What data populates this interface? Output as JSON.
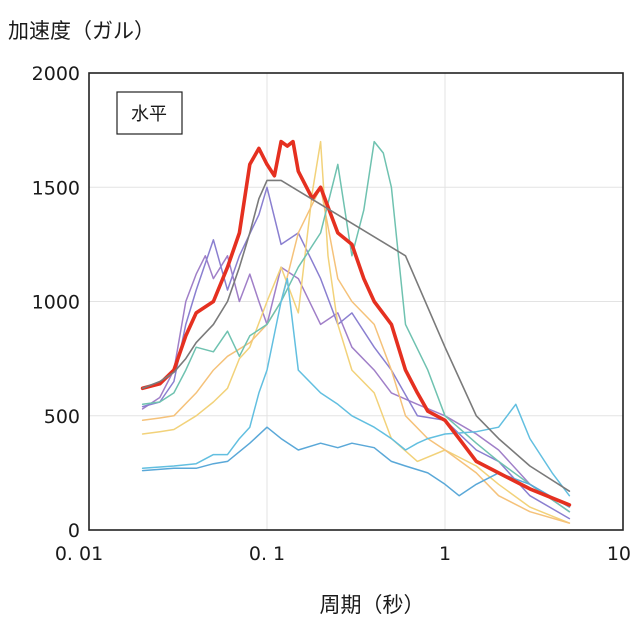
{
  "chart_data": {
    "type": "line",
    "ylabel": "加速度（ガル）",
    "xlabel": "周期（秒）",
    "annotation": "水平",
    "x_scale": "log",
    "xlim": [
      0.01,
      10
    ],
    "ylim": [
      0,
      2000
    ],
    "x_ticks": [
      0.01,
      0.1,
      1,
      10
    ],
    "x_tick_labels": [
      "0. 01",
      "0. 1",
      "1",
      "10"
    ],
    "y_ticks": [
      0,
      500,
      1000,
      1500,
      2000
    ],
    "y_tick_labels": [
      "0",
      "500",
      "1000",
      "1500",
      "2000"
    ],
    "grid": true,
    "series": [
      {
        "color": "#a07fc8",
        "values": [
          [
            0.02,
            530
          ],
          [
            0.025,
            580
          ],
          [
            0.03,
            700
          ],
          [
            0.035,
            1000
          ],
          [
            0.04,
            1120
          ],
          [
            0.045,
            1200
          ],
          [
            0.05,
            1100
          ],
          [
            0.06,
            1200
          ],
          [
            0.07,
            1000
          ],
          [
            0.08,
            1120
          ],
          [
            0.09,
            1000
          ],
          [
            0.1,
            900
          ],
          [
            0.12,
            1150
          ],
          [
            0.15,
            1100
          ],
          [
            0.2,
            900
          ],
          [
            0.25,
            950
          ],
          [
            0.3,
            800
          ],
          [
            0.4,
            700
          ],
          [
            0.5,
            600
          ],
          [
            0.7,
            550
          ],
          [
            1.0,
            500
          ],
          [
            1.5,
            420
          ],
          [
            2,
            350
          ],
          [
            3,
            200
          ],
          [
            5,
            80
          ]
        ]
      },
      {
        "color": "#8a7fd0",
        "values": [
          [
            0.02,
            540
          ],
          [
            0.025,
            560
          ],
          [
            0.03,
            650
          ],
          [
            0.035,
            900
          ],
          [
            0.04,
            1050
          ],
          [
            0.05,
            1270
          ],
          [
            0.06,
            1050
          ],
          [
            0.07,
            1200
          ],
          [
            0.09,
            1380
          ],
          [
            0.1,
            1500
          ],
          [
            0.12,
            1250
          ],
          [
            0.15,
            1300
          ],
          [
            0.2,
            1100
          ],
          [
            0.25,
            900
          ],
          [
            0.3,
            950
          ],
          [
            0.4,
            800
          ],
          [
            0.5,
            700
          ],
          [
            0.7,
            500
          ],
          [
            1.0,
            480
          ],
          [
            1.5,
            350
          ],
          [
            2,
            300
          ],
          [
            3,
            150
          ],
          [
            5,
            50
          ]
        ]
      },
      {
        "color": "#f2d27a",
        "values": [
          [
            0.02,
            420
          ],
          [
            0.025,
            430
          ],
          [
            0.03,
            440
          ],
          [
            0.04,
            500
          ],
          [
            0.05,
            560
          ],
          [
            0.06,
            620
          ],
          [
            0.07,
            750
          ],
          [
            0.08,
            800
          ],
          [
            0.1,
            1000
          ],
          [
            0.12,
            1150
          ],
          [
            0.15,
            950
          ],
          [
            0.18,
            1480
          ],
          [
            0.2,
            1700
          ],
          [
            0.22,
            1200
          ],
          [
            0.25,
            900
          ],
          [
            0.3,
            700
          ],
          [
            0.4,
            600
          ],
          [
            0.5,
            400
          ],
          [
            0.7,
            300
          ],
          [
            1.0,
            350
          ],
          [
            1.5,
            280
          ],
          [
            2,
            200
          ],
          [
            3,
            100
          ],
          [
            5,
            30
          ]
        ]
      },
      {
        "color": "#f5c27a",
        "values": [
          [
            0.02,
            480
          ],
          [
            0.025,
            490
          ],
          [
            0.03,
            500
          ],
          [
            0.04,
            600
          ],
          [
            0.05,
            700
          ],
          [
            0.06,
            760
          ],
          [
            0.08,
            820
          ],
          [
            0.1,
            900
          ],
          [
            0.12,
            1000
          ],
          [
            0.15,
            1300
          ],
          [
            0.2,
            1500
          ],
          [
            0.25,
            1100
          ],
          [
            0.3,
            1000
          ],
          [
            0.4,
            900
          ],
          [
            0.5,
            700
          ],
          [
            0.6,
            500
          ],
          [
            0.8,
            400
          ],
          [
            1.0,
            350
          ],
          [
            1.5,
            250
          ],
          [
            2,
            150
          ],
          [
            3,
            80
          ],
          [
            5,
            30
          ]
        ]
      },
      {
        "color": "#6fc2b0",
        "values": [
          [
            0.02,
            550
          ],
          [
            0.025,
            560
          ],
          [
            0.03,
            600
          ],
          [
            0.035,
            700
          ],
          [
            0.04,
            800
          ],
          [
            0.05,
            780
          ],
          [
            0.06,
            870
          ],
          [
            0.07,
            760
          ],
          [
            0.08,
            850
          ],
          [
            0.1,
            900
          ],
          [
            0.12,
            1000
          ],
          [
            0.15,
            1150
          ],
          [
            0.2,
            1300
          ],
          [
            0.25,
            1600
          ],
          [
            0.3,
            1200
          ],
          [
            0.35,
            1400
          ],
          [
            0.4,
            1700
          ],
          [
            0.45,
            1650
          ],
          [
            0.5,
            1500
          ],
          [
            0.6,
            900
          ],
          [
            0.8,
            700
          ],
          [
            1.0,
            500
          ],
          [
            1.5,
            380
          ],
          [
            2,
            300
          ],
          [
            3,
            200
          ],
          [
            5,
            80
          ]
        ]
      },
      {
        "color": "#62bfe0",
        "values": [
          [
            0.02,
            270
          ],
          [
            0.03,
            280
          ],
          [
            0.04,
            290
          ],
          [
            0.05,
            330
          ],
          [
            0.06,
            330
          ],
          [
            0.07,
            400
          ],
          [
            0.08,
            450
          ],
          [
            0.09,
            600
          ],
          [
            0.1,
            700
          ],
          [
            0.12,
            1000
          ],
          [
            0.13,
            1100
          ],
          [
            0.15,
            700
          ],
          [
            0.2,
            600
          ],
          [
            0.25,
            550
          ],
          [
            0.3,
            500
          ],
          [
            0.4,
            450
          ],
          [
            0.5,
            400
          ],
          [
            0.6,
            350
          ],
          [
            0.7,
            380
          ],
          [
            0.8,
            400
          ],
          [
            1.0,
            420
          ],
          [
            1.5,
            430
          ],
          [
            2,
            450
          ],
          [
            2.5,
            550
          ],
          [
            3,
            400
          ],
          [
            4,
            250
          ],
          [
            5,
            150
          ]
        ]
      },
      {
        "color": "#5aa8d8",
        "values": [
          [
            0.02,
            260
          ],
          [
            0.03,
            270
          ],
          [
            0.04,
            270
          ],
          [
            0.05,
            290
          ],
          [
            0.06,
            300
          ],
          [
            0.08,
            380
          ],
          [
            0.1,
            450
          ],
          [
            0.12,
            400
          ],
          [
            0.15,
            350
          ],
          [
            0.2,
            380
          ],
          [
            0.25,
            360
          ],
          [
            0.3,
            380
          ],
          [
            0.4,
            360
          ],
          [
            0.5,
            300
          ],
          [
            0.6,
            280
          ],
          [
            0.8,
            250
          ],
          [
            1.0,
            200
          ],
          [
            1.2,
            150
          ],
          [
            1.5,
            200
          ],
          [
            2,
            250
          ],
          [
            3,
            200
          ],
          [
            5,
            100
          ]
        ]
      },
      {
        "color": "#e53020",
        "values": [
          [
            0.02,
            620
          ],
          [
            0.025,
            640
          ],
          [
            0.03,
            700
          ],
          [
            0.035,
            850
          ],
          [
            0.04,
            950
          ],
          [
            0.05,
            1000
          ],
          [
            0.06,
            1150
          ],
          [
            0.07,
            1300
          ],
          [
            0.08,
            1600
          ],
          [
            0.09,
            1670
          ],
          [
            0.1,
            1600
          ],
          [
            0.11,
            1550
          ],
          [
            0.12,
            1700
          ],
          [
            0.13,
            1680
          ],
          [
            0.14,
            1700
          ],
          [
            0.15,
            1570
          ],
          [
            0.18,
            1450
          ],
          [
            0.2,
            1500
          ],
          [
            0.25,
            1300
          ],
          [
            0.3,
            1250
          ],
          [
            0.35,
            1100
          ],
          [
            0.4,
            1000
          ],
          [
            0.5,
            900
          ],
          [
            0.6,
            700
          ],
          [
            0.7,
            600
          ],
          [
            0.8,
            520
          ],
          [
            1.0,
            480
          ],
          [
            1.2,
            400
          ],
          [
            1.5,
            300
          ],
          [
            2,
            250
          ],
          [
            3,
            180
          ],
          [
            5,
            110
          ]
        ]
      },
      {
        "color": "#7a7a7a",
        "values": [
          [
            0.02,
            620
          ],
          [
            0.025,
            650
          ],
          [
            0.03,
            690
          ],
          [
            0.035,
            750
          ],
          [
            0.04,
            820
          ],
          [
            0.05,
            900
          ],
          [
            0.06,
            1000
          ],
          [
            0.07,
            1150
          ],
          [
            0.08,
            1300
          ],
          [
            0.09,
            1450
          ],
          [
            0.1,
            1530
          ],
          [
            0.12,
            1530
          ],
          [
            0.6,
            1200
          ],
          [
            1.0,
            800
          ],
          [
            1.5,
            500
          ],
          [
            2,
            400
          ],
          [
            3,
            280
          ],
          [
            5,
            170
          ]
        ]
      }
    ]
  }
}
